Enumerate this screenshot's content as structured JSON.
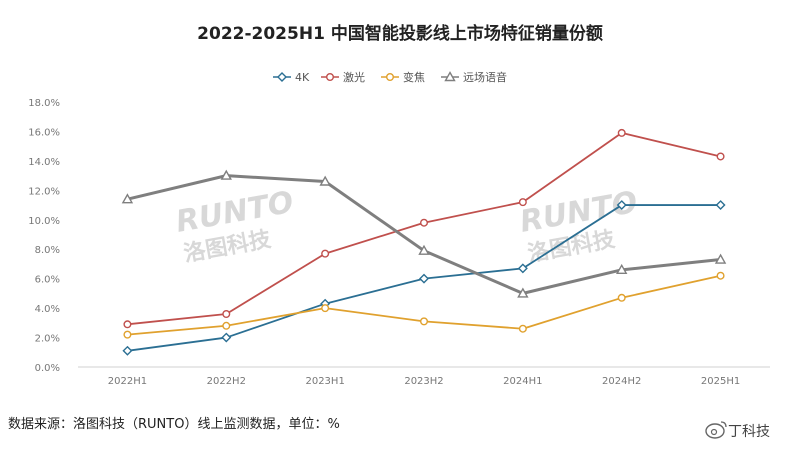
{
  "chart_data": {
    "type": "line",
    "title": "2022-2025H1 中国智能投影线上市场特征销量份额",
    "categories": [
      "2022H1",
      "2022H2",
      "2023H1",
      "2023H2",
      "2024H1",
      "2024H2",
      "2025H1"
    ],
    "y_ticks": [
      "0.0%",
      "2.0%",
      "4.0%",
      "6.0%",
      "8.0%",
      "10.0%",
      "12.0%",
      "14.0%",
      "16.0%",
      "18.0%"
    ],
    "ylim": [
      0,
      18
    ],
    "grid": false,
    "legend_position": "top-center",
    "series": [
      {
        "name": "4K",
        "color": "#2b6f93",
        "marker": "diamond",
        "values": [
          1.1,
          2.0,
          4.3,
          6.0,
          6.7,
          11.0,
          11.0
        ]
      },
      {
        "name": "激光",
        "color": "#c0504d",
        "marker": "circle",
        "values": [
          2.9,
          3.6,
          7.7,
          9.8,
          11.2,
          15.9,
          14.3
        ]
      },
      {
        "name": "变焦",
        "color": "#e0a12e",
        "marker": "circle",
        "values": [
          2.2,
          2.8,
          4.0,
          3.1,
          2.6,
          4.7,
          6.2
        ]
      },
      {
        "name": "远场语音",
        "color": "#7f7f7f",
        "marker": "triangle",
        "values": [
          11.4,
          13.0,
          12.6,
          7.9,
          5.0,
          6.6,
          7.3
        ]
      }
    ]
  },
  "watermark": {
    "brand": "RUNTO",
    "cn": "洛图科技"
  },
  "source_text": "数据来源：洛图科技（RUNTO）线上监测数据，单位：%",
  "weibo_brand": "丁科技"
}
